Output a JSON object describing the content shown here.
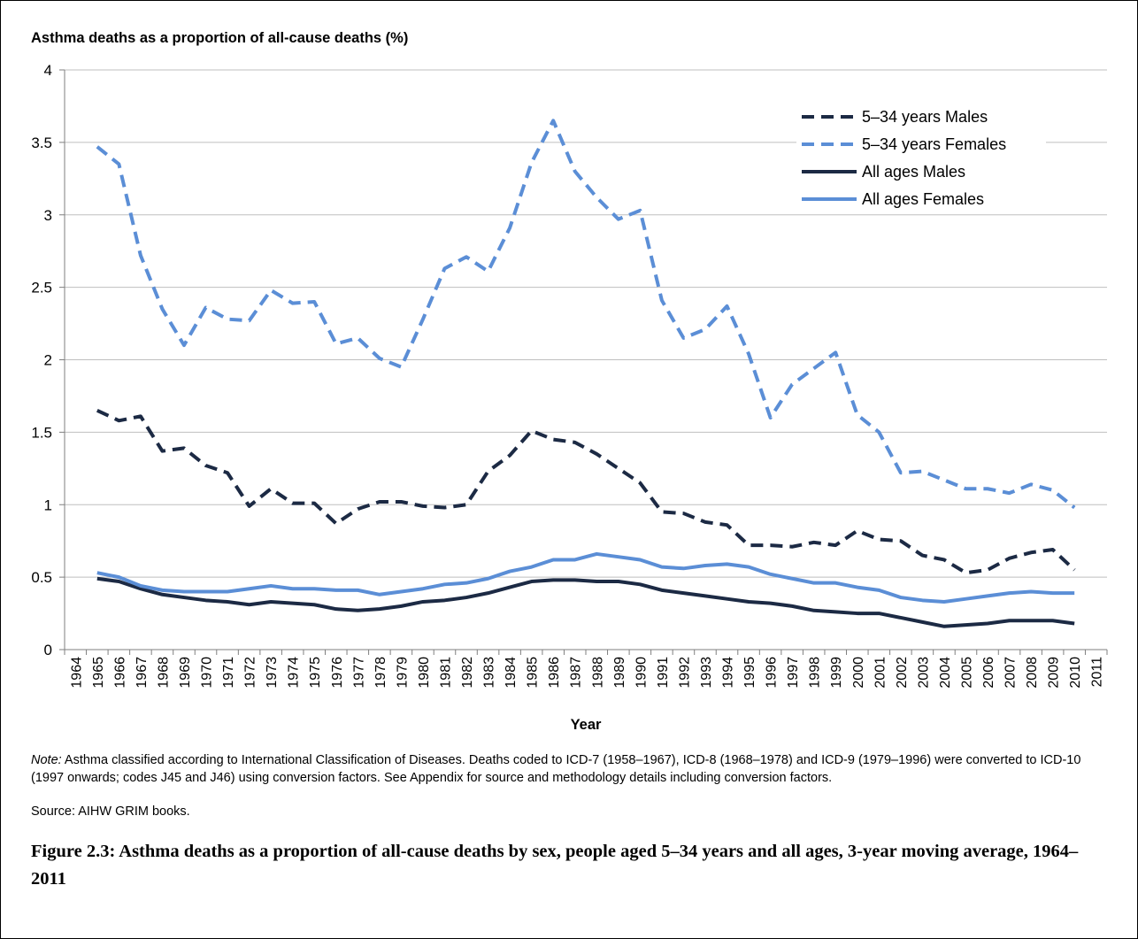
{
  "chart_data": {
    "type": "line",
    "title": "Asthma deaths as a proportion of all-cause deaths (%)",
    "x_label": "Year",
    "categories": [
      "1964",
      "1965",
      "1966",
      "1967",
      "1968",
      "1969",
      "1970",
      "1971",
      "1972",
      "1973",
      "1974",
      "1975",
      "1976",
      "1977",
      "1978",
      "1979",
      "1980",
      "1981",
      "1982",
      "1983",
      "1984",
      "1985",
      "1986",
      "1987",
      "1988",
      "1989",
      "1990",
      "1991",
      "1992",
      "1993",
      "1994",
      "1995",
      "1996",
      "1997",
      "1998",
      "1999",
      "2000",
      "2001",
      "2002",
      "2003",
      "2004",
      "2005",
      "2006",
      "2007",
      "2008",
      "2009",
      "2010",
      "2011"
    ],
    "series": [
      {
        "name": "5–34 years Males",
        "color": "#1c2a44",
        "dashed": true,
        "values": [
          null,
          1.65,
          1.58,
          1.61,
          1.37,
          1.39,
          1.27,
          1.22,
          0.99,
          1.11,
          1.01,
          1.01,
          0.87,
          0.97,
          1.02,
          1.02,
          0.99,
          0.98,
          1.0,
          1.23,
          1.34,
          1.51,
          1.45,
          1.43,
          1.35,
          1.25,
          1.15,
          0.95,
          0.94,
          0.88,
          0.86,
          0.72,
          0.72,
          0.71,
          0.74,
          0.72,
          0.82,
          0.76,
          0.75,
          0.65,
          0.62,
          0.53,
          0.55,
          0.63,
          0.67,
          0.69,
          0.55,
          null
        ]
      },
      {
        "name": "5–34 years Females",
        "color": "#5b8ed6",
        "dashed": true,
        "values": [
          null,
          3.47,
          3.35,
          2.72,
          2.35,
          2.1,
          2.36,
          2.28,
          2.27,
          2.48,
          2.39,
          2.4,
          2.11,
          2.15,
          2.01,
          1.95,
          2.28,
          2.63,
          2.71,
          2.61,
          2.91,
          3.36,
          3.65,
          3.3,
          3.12,
          2.97,
          3.03,
          2.41,
          2.15,
          2.21,
          2.37,
          2.04,
          1.6,
          1.83,
          1.94,
          2.05,
          1.62,
          1.5,
          1.22,
          1.23,
          1.17,
          1.11,
          1.11,
          1.08,
          1.14,
          1.1,
          0.98,
          null
        ]
      },
      {
        "name": "All ages Males",
        "color": "#1c2a44",
        "dashed": false,
        "values": [
          null,
          0.49,
          0.47,
          0.42,
          0.38,
          0.36,
          0.34,
          0.33,
          0.31,
          0.33,
          0.32,
          0.31,
          0.28,
          0.27,
          0.28,
          0.3,
          0.33,
          0.34,
          0.36,
          0.39,
          0.43,
          0.47,
          0.48,
          0.48,
          0.47,
          0.47,
          0.45,
          0.41,
          0.39,
          0.37,
          0.35,
          0.33,
          0.32,
          0.3,
          0.27,
          0.26,
          0.25,
          0.25,
          0.22,
          0.19,
          0.16,
          0.17,
          0.18,
          0.2,
          0.2,
          0.2,
          0.18,
          null
        ]
      },
      {
        "name": "All ages Females",
        "color": "#5b8ed6",
        "dashed": false,
        "values": [
          null,
          0.53,
          0.5,
          0.44,
          0.41,
          0.4,
          0.4,
          0.4,
          0.42,
          0.44,
          0.42,
          0.42,
          0.41,
          0.41,
          0.38,
          0.4,
          0.42,
          0.45,
          0.46,
          0.49,
          0.54,
          0.57,
          0.62,
          0.62,
          0.66,
          0.64,
          0.62,
          0.57,
          0.56,
          0.58,
          0.59,
          0.57,
          0.52,
          0.49,
          0.46,
          0.46,
          0.43,
          0.41,
          0.36,
          0.34,
          0.33,
          0.35,
          0.37,
          0.39,
          0.4,
          0.39,
          0.39,
          null
        ]
      }
    ],
    "ylim": [
      0,
      4
    ],
    "yticks": [
      0,
      0.5,
      1,
      1.5,
      2,
      2.5,
      3,
      3.5,
      4
    ],
    "grid": true,
    "legend": "upper right"
  },
  "note": {
    "label": "Note:",
    "text": "Asthma classified according to International Classification of Diseases. Deaths coded to ICD-7 (1958–1967), ICD-8 (1968–1978) and ICD-9 (1979–1996) were converted to ICD-10 (1997 onwards; codes J45 and J46) using conversion factors. See Appendix for source and methodology details including conversion factors."
  },
  "source": "Source: AIHW GRIM books.",
  "caption": "Figure 2.3: Asthma deaths as a proportion of all-cause deaths by sex, people aged 5–34 years and all ages, 3-year moving average, 1964–2011"
}
